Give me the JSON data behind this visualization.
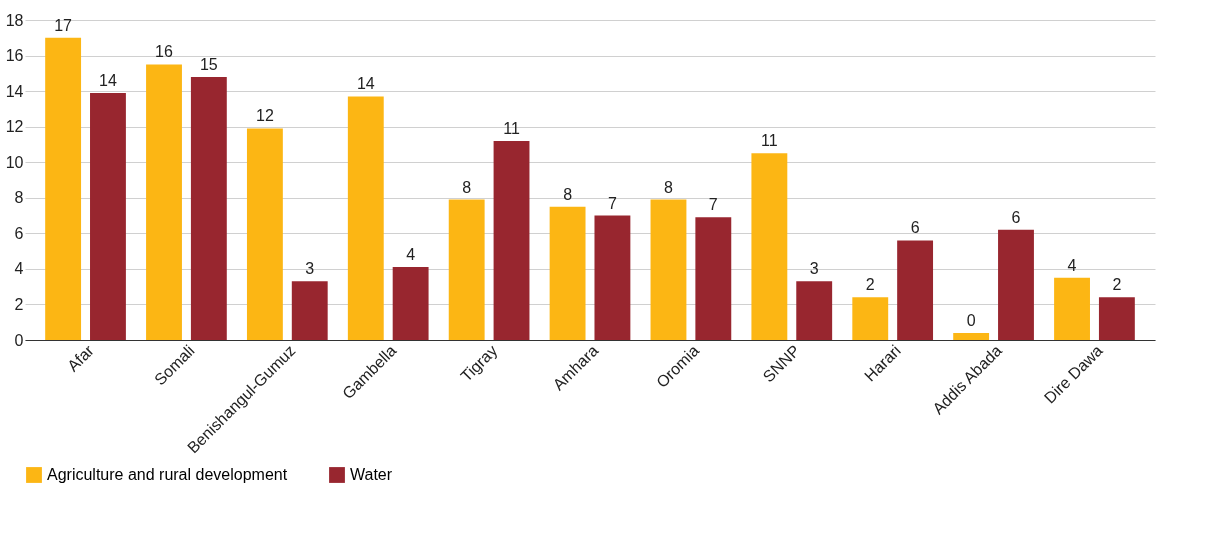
{
  "chart_data": {
    "type": "bar",
    "categories": [
      "Afar",
      "Somali",
      "Benishangul-Gumuz",
      "Gambella",
      "Tigray",
      "Amhara",
      "Oromia",
      "SNNP",
      "Harari",
      "Addis Abada",
      "Dire Dawa"
    ],
    "series": [
      {
        "name": "Agriculture and rural development",
        "color": "#fcb614",
        "values": [
          17.0,
          15.5,
          11.9,
          13.7,
          7.9,
          7.5,
          7.9,
          10.5,
          2.4,
          0.4,
          3.5
        ],
        "value_labels": [
          "17",
          "16",
          "12",
          "14",
          "8",
          "8",
          "8",
          "11",
          "2",
          "0",
          "4"
        ]
      },
      {
        "name": "Water",
        "color": "#98262f",
        "values": [
          13.9,
          14.8,
          3.3,
          4.1,
          11.2,
          7.0,
          6.9,
          3.3,
          5.6,
          6.2,
          2.4
        ],
        "value_labels": [
          "14",
          "15",
          "3",
          "4",
          "11",
          "7",
          "7",
          "3",
          "6",
          "6",
          "2"
        ]
      }
    ],
    "ylim": [
      0,
      18
    ],
    "yticks": [
      0,
      2,
      4,
      6,
      8,
      10,
      12,
      14,
      16,
      18
    ],
    "grid": "y",
    "legend": "bottom"
  }
}
